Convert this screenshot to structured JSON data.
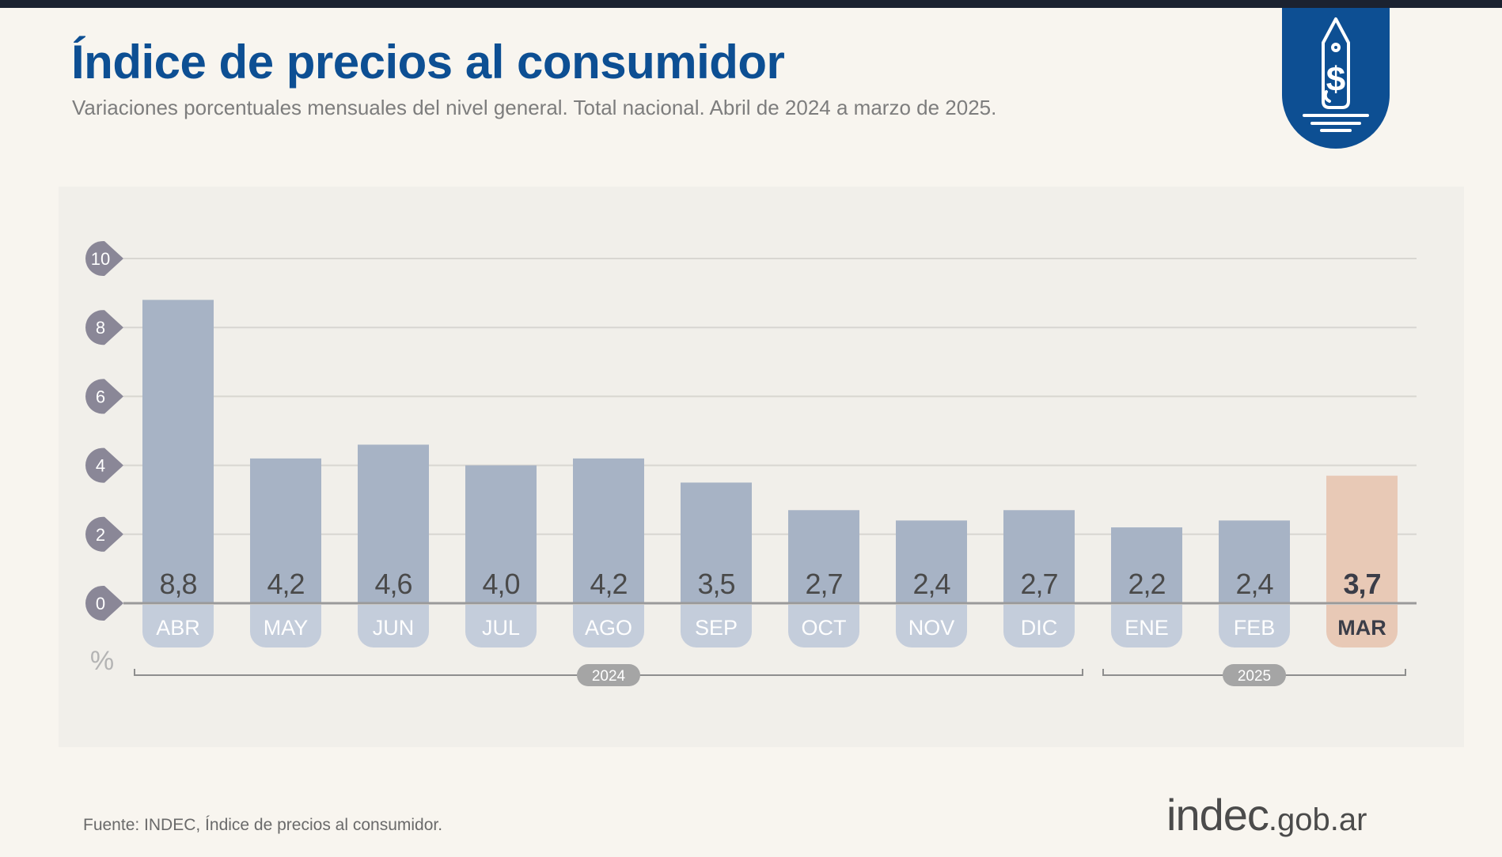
{
  "header": {
    "title": "Índice de precios al consumidor",
    "subtitle": "Variaciones porcentuales mensuales del nivel general. Total nacional. Abril de 2024 a marzo de 2025."
  },
  "footer": {
    "source": "Fuente: INDEC, Índice de precios al consumidor.",
    "logo_main": "indec",
    "logo_domain": ".gob.ar"
  },
  "badge_icon": "price-tag-dollar-icon",
  "chart_data": {
    "type": "bar",
    "title": "Índice de precios al consumidor",
    "subtitle": "Variaciones porcentuales mensuales del nivel general. Total nacional. Abril de 2024 a marzo de 2025.",
    "ylabel": "%",
    "ylim": [
      0,
      10
    ],
    "yticks": [
      0,
      2,
      4,
      6,
      8,
      10
    ],
    "grid": true,
    "categories": [
      "ABR",
      "MAY",
      "JUN",
      "JUL",
      "AGO",
      "SEP",
      "OCT",
      "NOV",
      "DIC",
      "ENE",
      "FEB",
      "MAR"
    ],
    "values": [
      8.8,
      4.2,
      4.6,
      4.0,
      4.2,
      3.5,
      2.7,
      2.4,
      2.7,
      2.2,
      2.4,
      3.7
    ],
    "value_labels": [
      "8,8",
      "4,2",
      "4,6",
      "4,0",
      "4,2",
      "3,5",
      "2,7",
      "2,4",
      "2,7",
      "2,2",
      "2,4",
      "3,7"
    ],
    "highlight_index": 11,
    "year_groups": [
      {
        "label": "2024",
        "from": 0,
        "to": 8
      },
      {
        "label": "2025",
        "from": 9,
        "to": 11
      }
    ],
    "colors": {
      "bar": "#a7b3c5",
      "highlight_bar": "#e8c9b6",
      "tick_badge": "#8a8797",
      "value_text": "#4a4a4a",
      "highlight_text": "#3b3d48",
      "grid": "#d8d6d1",
      "axis": "#9a9a9a"
    }
  }
}
